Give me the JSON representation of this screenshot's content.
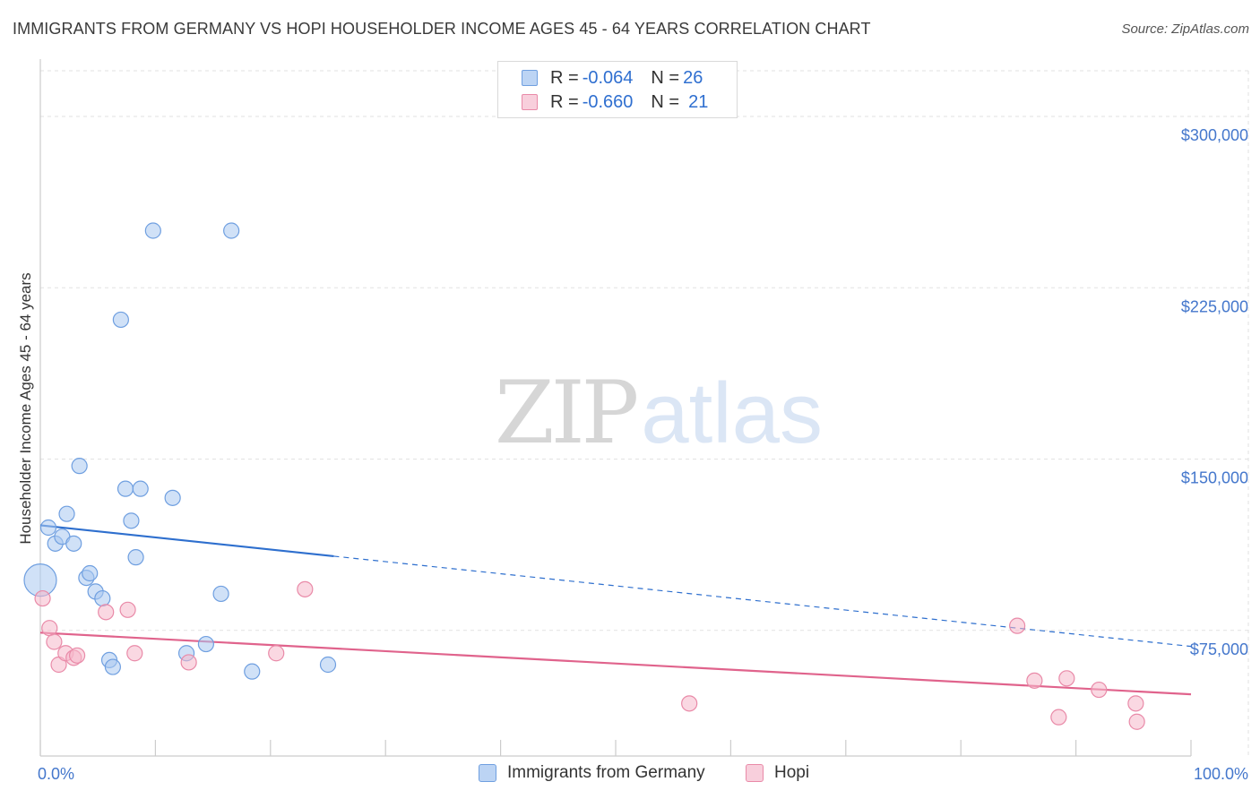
{
  "header": {
    "title": "IMMIGRANTS FROM GERMANY VS HOPI HOUSEHOLDER INCOME AGES 45 - 64 YEARS CORRELATION CHART",
    "source": "Source: ZipAtlas.com"
  },
  "watermark": {
    "zip": "ZIP",
    "atlas": "atlas"
  },
  "legend": {
    "rows": [
      {
        "r_label": "R = ",
        "r_value": "-0.064",
        "n_label": "N = ",
        "n_value": "26"
      },
      {
        "r_label": "R = ",
        "r_value": "-0.660",
        "n_label": "N = ",
        "n_value": "21"
      }
    ]
  },
  "bottom_legend": {
    "series1": "Immigrants from Germany",
    "series2": "Hopi"
  },
  "colors": {
    "blue_fill": "#a9c8f0",
    "blue_stroke": "#6f9fe0",
    "blue_line": "#2e6fce",
    "pink_fill": "#f5b8cb",
    "pink_stroke": "#e98aa8",
    "pink_line": "#e0638c",
    "grid": "#e2e2e2",
    "tick_text": "#4477cc"
  },
  "chart_data": {
    "type": "scatter",
    "title": "IMMIGRANTS FROM GERMANY VS HOPI HOUSEHOLDER INCOME AGES 45 - 64 YEARS CORRELATION CHART",
    "xlabel": "",
    "ylabel": "Householder Income Ages 45 - 64 years",
    "xlim": [
      0,
      100
    ],
    "ylim": [
      20000,
      320000
    ],
    "x_tick_labels": [
      "0.0%",
      "100.0%"
    ],
    "y_ticks": [
      75000,
      150000,
      225000,
      300000
    ],
    "y_tick_labels": [
      "$75,000",
      "$150,000",
      "$225,000",
      "$300,000"
    ],
    "grid": true,
    "series": [
      {
        "name": "Immigrants from Germany",
        "color": "#a9c8f0",
        "points": [
          {
            "x": 0.0,
            "y": 97000,
            "big": true
          },
          {
            "x": 0.7,
            "y": 120000
          },
          {
            "x": 1.3,
            "y": 113000
          },
          {
            "x": 1.9,
            "y": 116000
          },
          {
            "x": 2.3,
            "y": 126000
          },
          {
            "x": 2.9,
            "y": 113000
          },
          {
            "x": 3.4,
            "y": 147000
          },
          {
            "x": 4.0,
            "y": 98000
          },
          {
            "x": 4.3,
            "y": 100000
          },
          {
            "x": 4.8,
            "y": 92000
          },
          {
            "x": 5.4,
            "y": 89000
          },
          {
            "x": 6.0,
            "y": 62000
          },
          {
            "x": 6.3,
            "y": 59000
          },
          {
            "x": 7.0,
            "y": 211000
          },
          {
            "x": 7.4,
            "y": 137000
          },
          {
            "x": 7.9,
            "y": 123000
          },
          {
            "x": 8.3,
            "y": 107000
          },
          {
            "x": 8.7,
            "y": 137000
          },
          {
            "x": 9.8,
            "y": 250000
          },
          {
            "x": 11.5,
            "y": 133000
          },
          {
            "x": 12.7,
            "y": 65000
          },
          {
            "x": 14.4,
            "y": 69000
          },
          {
            "x": 15.7,
            "y": 91000
          },
          {
            "x": 16.6,
            "y": 250000
          },
          {
            "x": 18.4,
            "y": 57000
          },
          {
            "x": 25.0,
            "y": 60000
          }
        ],
        "trend": {
          "x0": 0,
          "y0": 121000,
          "x_solid_end": 25.5,
          "x1": 100,
          "y1": 68000
        }
      },
      {
        "name": "Hopi",
        "color": "#f5b8cb",
        "points": [
          {
            "x": 0.2,
            "y": 89000
          },
          {
            "x": 0.8,
            "y": 76000
          },
          {
            "x": 1.2,
            "y": 70000
          },
          {
            "x": 1.6,
            "y": 60000
          },
          {
            "x": 2.2,
            "y": 65000
          },
          {
            "x": 2.9,
            "y": 63000
          },
          {
            "x": 3.2,
            "y": 64000
          },
          {
            "x": 5.7,
            "y": 83000
          },
          {
            "x": 7.6,
            "y": 84000
          },
          {
            "x": 8.2,
            "y": 65000
          },
          {
            "x": 12.9,
            "y": 61000
          },
          {
            "x": 20.5,
            "y": 65000
          },
          {
            "x": 23.0,
            "y": 93000
          },
          {
            "x": 56.4,
            "y": 43000
          },
          {
            "x": 84.9,
            "y": 77000
          },
          {
            "x": 86.4,
            "y": 53000
          },
          {
            "x": 88.5,
            "y": 37000
          },
          {
            "x": 89.2,
            "y": 54000
          },
          {
            "x": 92.0,
            "y": 49000
          },
          {
            "x": 95.2,
            "y": 43000
          },
          {
            "x": 95.3,
            "y": 35000
          }
        ],
        "trend": {
          "x0": 0,
          "y0": 74000,
          "x1": 100,
          "y1": 47000
        }
      }
    ]
  }
}
